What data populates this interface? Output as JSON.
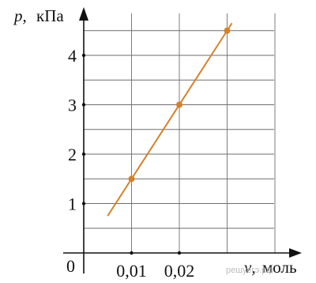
{
  "chart_data": {
    "type": "line",
    "x_axis": {
      "symbol": "ν,",
      "unit": "моль",
      "tick_labels": [
        "0,01",
        "0,02"
      ],
      "ticks": [
        0.01,
        0.02
      ],
      "range": [
        -0.001,
        0.0408
      ],
      "grid": [
        0.01,
        0.02,
        0.03,
        0.04
      ]
    },
    "y_axis": {
      "symbol": "p,",
      "unit": "кПа",
      "tick_labels": [
        "1",
        "2",
        "3",
        "4"
      ],
      "ticks": [
        1,
        2,
        3,
        4
      ],
      "range": [
        0,
        4.85
      ],
      "grid": [
        0.5,
        1,
        1.5,
        2,
        2.5,
        3,
        3.5,
        4,
        4.5
      ]
    },
    "origin_label": "0",
    "line": {
      "x": [
        0.005,
        0.031
      ],
      "y": [
        0.75,
        4.65
      ]
    },
    "points": [
      {
        "x": 0.01,
        "y": 1.5
      },
      {
        "x": 0.02,
        "y": 3.0
      },
      {
        "x": 0.03,
        "y": 4.5
      }
    ],
    "colors": {
      "line": "#d4812a",
      "points": "#d4812a",
      "grid": "#6e6e6e",
      "axis": "#111111"
    },
    "grid": true,
    "legend": "none"
  },
  "watermark": "решуегэ.рф"
}
